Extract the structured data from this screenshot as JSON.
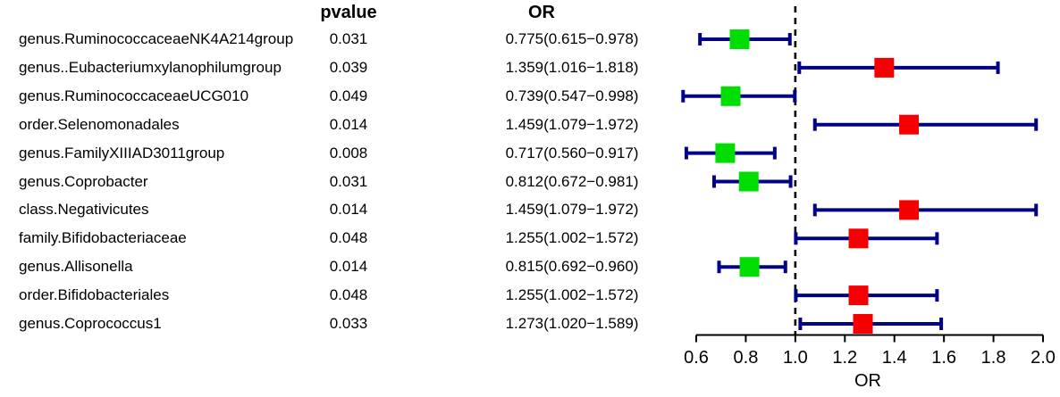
{
  "chart_data": {
    "type": "forest",
    "title": "",
    "xlabel": "OR",
    "xlim": [
      0.6,
      2.0
    ],
    "x_ticks": [
      "0.6",
      "0.8",
      "1.0",
      "1.2",
      "1.4",
      "1.6",
      "1.8",
      "2.0"
    ],
    "reference_line": 1.0,
    "grid": false,
    "legend_position": "none",
    "columns": {
      "pvalue_header": "pvalue",
      "or_header": "OR"
    },
    "colors": {
      "error_bar": "#00008B",
      "box_or_below_1": "#00DD00",
      "box_or_above_1": "#F40000",
      "reference_line": "#000000",
      "axis": "#000000",
      "text": "#000000"
    },
    "rows": [
      {
        "label": "genus.RuminococcaceaeNK4A214group",
        "pvalue": "0.031",
        "or_text": "0.775(0.615−0.978)",
        "or": 0.775,
        "ci_low": 0.615,
        "ci_high": 0.978
      },
      {
        "label": "genus..Eubacteriumxylanophilumgroup",
        "pvalue": "0.039",
        "or_text": "1.359(1.016−1.818)",
        "or": 1.359,
        "ci_low": 1.016,
        "ci_high": 1.818
      },
      {
        "label": "genus.RuminococcaceaeUCG010",
        "pvalue": "0.049",
        "or_text": "0.739(0.547−0.998)",
        "or": 0.739,
        "ci_low": 0.547,
        "ci_high": 0.998
      },
      {
        "label": "order.Selenomonadales",
        "pvalue": "0.014",
        "or_text": "1.459(1.079−1.972)",
        "or": 1.459,
        "ci_low": 1.079,
        "ci_high": 1.972
      },
      {
        "label": "genus.FamilyXIIIAD3011group",
        "pvalue": "0.008",
        "or_text": "0.717(0.560−0.917)",
        "or": 0.717,
        "ci_low": 0.56,
        "ci_high": 0.917
      },
      {
        "label": "genus.Coprobacter",
        "pvalue": "0.031",
        "or_text": "0.812(0.672−0.981)",
        "or": 0.812,
        "ci_low": 0.672,
        "ci_high": 0.981
      },
      {
        "label": "class.Negativicutes",
        "pvalue": "0.014",
        "or_text": "1.459(1.079−1.972)",
        "or": 1.459,
        "ci_low": 1.079,
        "ci_high": 1.972
      },
      {
        "label": "family.Bifidobacteriaceae",
        "pvalue": "0.048",
        "or_text": "1.255(1.002−1.572)",
        "or": 1.255,
        "ci_low": 1.002,
        "ci_high": 1.572
      },
      {
        "label": "genus.Allisonella",
        "pvalue": "0.014",
        "or_text": "0.815(0.692−0.960)",
        "or": 0.815,
        "ci_low": 0.692,
        "ci_high": 0.96
      },
      {
        "label": "order.Bifidobacteriales",
        "pvalue": "0.048",
        "or_text": "1.255(1.002−1.572)",
        "or": 1.255,
        "ci_low": 1.002,
        "ci_high": 1.572
      },
      {
        "label": "genus.Coprococcus1",
        "pvalue": "0.033",
        "or_text": "1.273(1.020−1.589)",
        "or": 1.273,
        "ci_low": 1.02,
        "ci_high": 1.589
      }
    ]
  }
}
